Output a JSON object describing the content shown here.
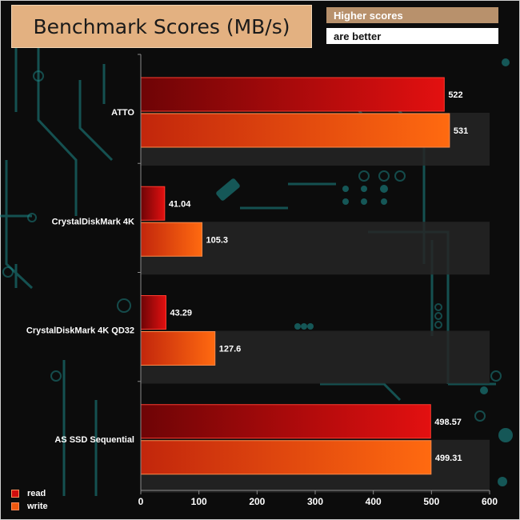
{
  "header": {
    "title": "Benchmark Scores (MB/s)",
    "note_line1": "Higher scores",
    "note_line2": "are better"
  },
  "colors": {
    "read": "#d10d0d",
    "write": "#f0580f",
    "axis": "#8a8a8a",
    "band": "#262626",
    "circuit": "#1f8e8e"
  },
  "chart_data": {
    "type": "bar",
    "orientation": "horizontal",
    "title": "Benchmark Scores (MB/s)",
    "categories": [
      "ATTO",
      "CrystalDiskMark 4K",
      "CrystalDiskMark 4K QD32",
      "AS SSD Sequential"
    ],
    "series": [
      {
        "name": "read",
        "values": [
          522,
          41.04,
          43.29,
          498.57
        ]
      },
      {
        "name": "write",
        "values": [
          531,
          105.3,
          127.6,
          499.31
        ]
      }
    ],
    "value_labels": [
      [
        "522",
        "531"
      ],
      [
        "41.04",
        "105.3"
      ],
      [
        "43.29",
        "127.6"
      ],
      [
        "498.57",
        "499.31"
      ]
    ],
    "xlim": [
      0,
      600
    ],
    "ticks": [
      0,
      100,
      200,
      300,
      400,
      500,
      600
    ],
    "grid": false,
    "legend_position": "bottom-left"
  }
}
